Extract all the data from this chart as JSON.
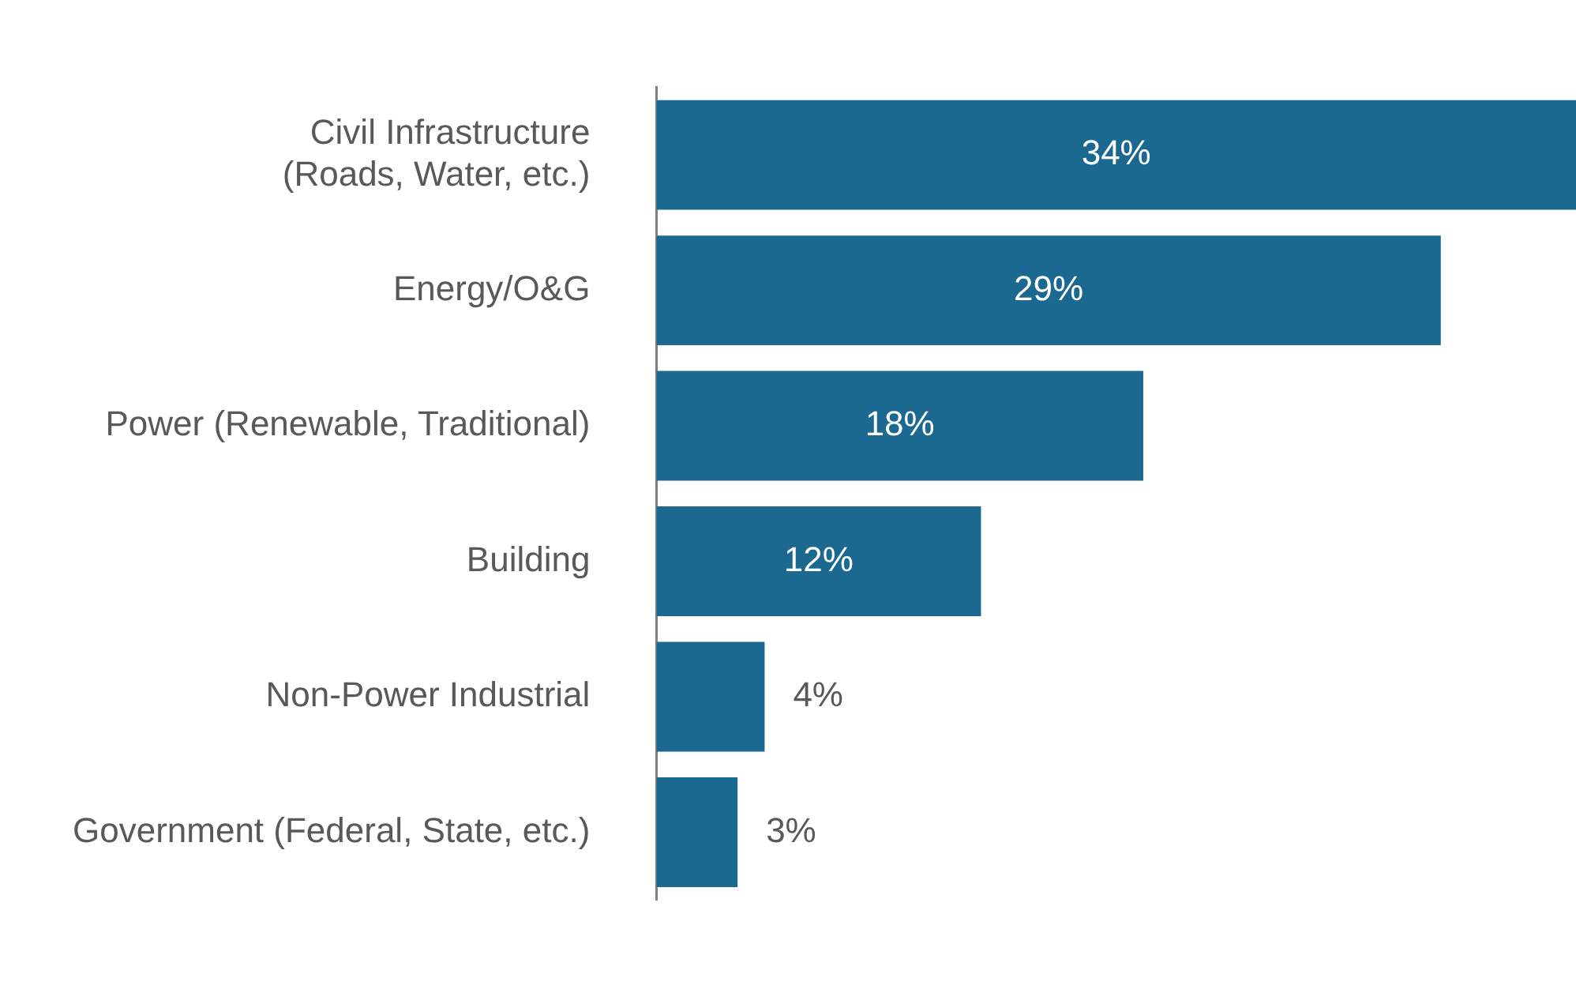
{
  "chart_data": {
    "type": "bar",
    "orientation": "horizontal",
    "categories": [
      "Civil Infrastructure\n(Roads, Water, etc.)",
      "Energy/O&G",
      "Power (Renewable, Traditional)",
      "Building",
      "Non-Power Industrial",
      "Government (Federal, State, etc.)"
    ],
    "values": [
      34,
      29,
      18,
      12,
      4,
      3
    ],
    "value_labels": [
      "34%",
      "29%",
      "18%",
      "12%",
      "4%",
      "3%"
    ],
    "color": "#1b6890",
    "xlim": [
      0,
      34
    ],
    "grid": false,
    "legend": false
  }
}
